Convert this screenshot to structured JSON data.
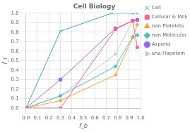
{
  "chart_data": {
    "type": "line",
    "title": "Cell Biology",
    "x_label": "f_b",
    "y_label": "f_r",
    "xlim": [
      0.0,
      1.0
    ],
    "ylim": [
      0.0,
      1.0
    ],
    "xticks": [
      {
        "value": 0.0,
        "label": "0.0"
      },
      {
        "value": 0.1,
        "label": "0.1"
      },
      {
        "value": 0.2,
        "label": "0.2"
      },
      {
        "value": 0.3,
        "label": "0.3"
      },
      {
        "value": 0.4,
        "label": "0.4"
      },
      {
        "value": 0.5,
        "label": "0.5"
      },
      {
        "value": 0.6,
        "label": "0.6"
      },
      {
        "value": 0.7,
        "label": "0.7"
      },
      {
        "value": 0.8,
        "label": "0.8"
      },
      {
        "value": 0.9,
        "label": "0.9"
      },
      {
        "value": 1.0,
        "label": "1.0"
      }
    ],
    "yticks": [
      {
        "value": 0.0,
        "label": "0.0"
      },
      {
        "value": 0.1,
        "label": "0.1"
      },
      {
        "value": 0.2,
        "label": "0.2"
      },
      {
        "value": 0.3,
        "label": "0.3"
      },
      {
        "value": 0.4,
        "label": "0.4"
      },
      {
        "value": 0.5,
        "label": "0.5"
      },
      {
        "value": 0.6,
        "label": "0.6"
      },
      {
        "value": 0.7,
        "label": "0.7"
      },
      {
        "value": 0.8,
        "label": "0.8"
      },
      {
        "value": 0.9,
        "label": "0.9"
      },
      {
        "value": 1.0,
        "label": "1.0"
      }
    ],
    "grid": true,
    "legend": "right",
    "series": [
      {
        "name": "Cell",
        "marker": "x",
        "line_style": "solid",
        "x": [
          0.0,
          0.3,
          0.75,
          0.93,
          0.97
        ],
        "values": [
          0.0,
          0.81,
          1.0,
          1.0,
          1.0
        ]
      },
      {
        "name": "Cellular & Molecular",
        "marker": "square",
        "line_style": "solid",
        "x": [
          0.0,
          0.3,
          0.78,
          0.93,
          0.97
        ],
        "values": [
          0.0,
          0.0,
          0.83,
          0.92,
          0.64
        ]
      },
      {
        "name": "nan Platelets",
        "marker": "triangle",
        "line_style": "solid",
        "x": [
          0.0,
          0.3,
          0.78,
          0.93,
          0.97
        ],
        "values": [
          0.0,
          0.08,
          0.35,
          0.74,
          0.88
        ]
      },
      {
        "name": "nan Molecular Medicine",
        "marker": "diamond",
        "line_style": "solid",
        "x": [
          0.0,
          0.3,
          0.78,
          0.93,
          0.97
        ],
        "values": [
          0.0,
          0.13,
          0.44,
          0.75,
          0.77
        ]
      },
      {
        "name": "Aspend",
        "marker": "circle",
        "line_style": "solid",
        "x": [
          0.0,
          0.3,
          0.78,
          0.93,
          0.97
        ],
        "values": [
          0.0,
          0.3,
          0.84,
          0.92,
          0.93
        ]
      },
      {
        "name": "ana Hopetem",
        "marker": "triangle-right",
        "line_style": "solid",
        "x": [
          0.0,
          0.3,
          0.78,
          0.93,
          0.97
        ],
        "values": [
          0.0,
          0.13,
          0.57,
          0.92,
          0.93
        ]
      }
    ]
  }
}
